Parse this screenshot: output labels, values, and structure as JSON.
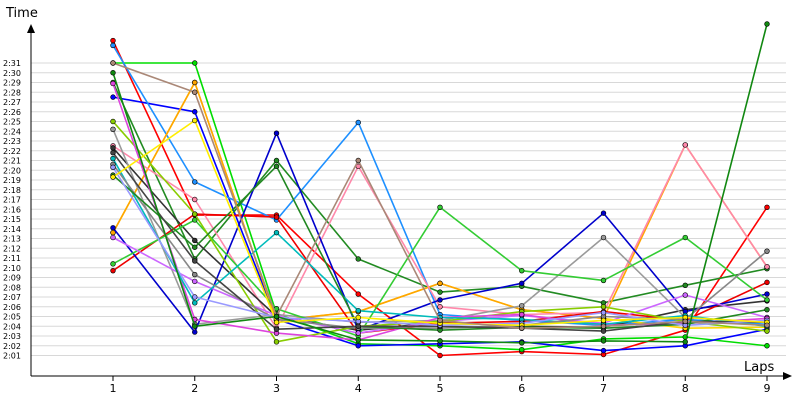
{
  "chart_data": {
    "type": "line",
    "ylabel": "Time",
    "xlabel": "Laps",
    "categories": [
      "1",
      "2",
      "3",
      "4",
      "5",
      "6",
      "7",
      "8",
      "9"
    ],
    "y_tick_labels": [
      "2:01",
      "2:02",
      "2:03",
      "2:04",
      "2:05",
      "2:06",
      "2:07",
      "2:08",
      "2:09",
      "2:10",
      "2:11",
      "2:12",
      "2:13",
      "2:14",
      "2:15",
      "2:16",
      "2:17",
      "2:18",
      "2:19",
      "2:20",
      "2:21",
      "2:22",
      "2:23",
      "2:24",
      "2:25",
      "2:26",
      "2:27",
      "2:28",
      "2:29",
      "2:30",
      "2:31"
    ],
    "y_tick_seconds": [
      121,
      122,
      123,
      124,
      125,
      126,
      127,
      128,
      129,
      130,
      131,
      132,
      133,
      134,
      135,
      136,
      137,
      138,
      139,
      140,
      141,
      142,
      143,
      144,
      145,
      146,
      147,
      148,
      149,
      150,
      151
    ],
    "ylim_seconds": [
      118.5,
      154.5
    ],
    "grid": true,
    "legend": "none",
    "series": [
      {
        "color": "#ff0000",
        "values": [
          153.3,
          135.4,
          135.4,
          127.3,
          121.0,
          121.4,
          121.1,
          123.6,
          136.2
        ]
      },
      {
        "color": "#00dd00",
        "values": [
          151.0,
          151.0,
          125.3,
          122.2,
          122.0,
          121.6,
          122.7,
          122.9,
          122.0
        ]
      },
      {
        "color": "#0000ff",
        "values": [
          147.5,
          146.0,
          124.7,
          122.0,
          122.2,
          122.4,
          121.5,
          122.0,
          123.7
        ]
      },
      {
        "color": "#1e90ff",
        "values": [
          152.8,
          138.8,
          134.9,
          144.9,
          125.2,
          124.6,
          124.1,
          124.7,
          124.2
        ]
      },
      {
        "color": "#228b22",
        "values": [
          149.0,
          130.9,
          141.0,
          130.9,
          127.5,
          128.1,
          126.4,
          128.2,
          129.9
        ]
      },
      {
        "color": "#ffd700",
        "values": [
          133.6,
          149.0,
          124.6,
          125.5,
          128.4,
          125.7,
          124.8,
          123.8,
          123.9
        ]
      },
      {
        "color": "#ffa500",
        "values": [
          133.6,
          149.0,
          124.6,
          125.5,
          128.4,
          125.7,
          124.8,
          142.6,
          130.1
        ]
      },
      {
        "color": "#ff88aa",
        "values": [
          142.5,
          137.0,
          123.8,
          140.4,
          126.0,
          125.2,
          125.4,
          142.6,
          130.1
        ]
      },
      {
        "color": "#333333",
        "values": [
          142.3,
          132.8,
          125.0,
          123.6,
          124.4,
          124.0,
          123.9,
          125.7,
          126.6
        ]
      },
      {
        "color": "#9a9a9a",
        "values": [
          144.2,
          124.2,
          125.2,
          124.4,
          124.6,
          126.1,
          133.1,
          124.9,
          124.4
        ]
      },
      {
        "color": "#ee0000",
        "values": [
          129.7,
          135.5,
          135.2,
          123.3,
          124.3,
          124.5,
          125.5,
          124.6,
          128.5
        ]
      },
      {
        "color": "#0000cc",
        "values": [
          134.1,
          123.4,
          143.8,
          123.6,
          126.7,
          128.4,
          135.6,
          125.5,
          127.3
        ]
      },
      {
        "color": "#33cc33",
        "values": [
          130.4,
          134.9,
          125.8,
          123.0,
          136.2,
          129.7,
          128.7,
          133.1,
          126.7
        ]
      },
      {
        "color": "#cc66ff",
        "values": [
          133.1,
          128.6,
          125.1,
          123.3,
          124.5,
          125.1,
          124.3,
          127.2,
          124.9
        ]
      },
      {
        "color": "#88cc00",
        "values": [
          145.0,
          135.5,
          122.4,
          124.0,
          124.5,
          125.5,
          126.0,
          124.5,
          123.5
        ]
      },
      {
        "color": "#dd44dd",
        "values": [
          148.9,
          124.7,
          123.3,
          122.6,
          124.9,
          125.2,
          124.1,
          124.3,
          124.8
        ]
      },
      {
        "color": "#00bbbb",
        "values": [
          141.2,
          126.4,
          133.6,
          125.6,
          124.9,
          124.7,
          124.2,
          125.1,
          124.0
        ]
      },
      {
        "color": "#888888",
        "values": [
          140.6,
          129.3,
          124.7,
          123.8,
          123.8,
          124.1,
          125.0,
          124.7,
          131.7
        ]
      },
      {
        "color": "#228822",
        "values": [
          139.5,
          132.1,
          140.4,
          124.0,
          123.6,
          123.9,
          123.8,
          124.2,
          125.7
        ]
      },
      {
        "color": "#444444",
        "values": [
          141.8,
          130.7,
          123.7,
          124.0,
          124.0,
          123.8,
          123.5,
          124.5,
          124.4
        ]
      },
      {
        "color": "#9999ff",
        "values": [
          140.3,
          127.0,
          124.9,
          124.5,
          124.1,
          124.3,
          125.4,
          124.1,
          124.6
        ]
      },
      {
        "color": "#ffee00",
        "values": [
          139.3,
          145.1,
          124.4,
          124.9,
          124.3,
          124.1,
          124.6,
          124.9,
          124.4
        ]
      },
      {
        "color": "#aa8877",
        "values": [
          151.0,
          148.0,
          125.0,
          141.0,
          124.6,
          123.8,
          124.0,
          124.5,
          124.1
        ]
      },
      {
        "color": "#118811",
        "values": [
          150.0,
          124.0,
          125.0,
          122.6,
          122.5,
          122.3,
          122.5,
          122.4,
          155.0
        ]
      }
    ]
  }
}
